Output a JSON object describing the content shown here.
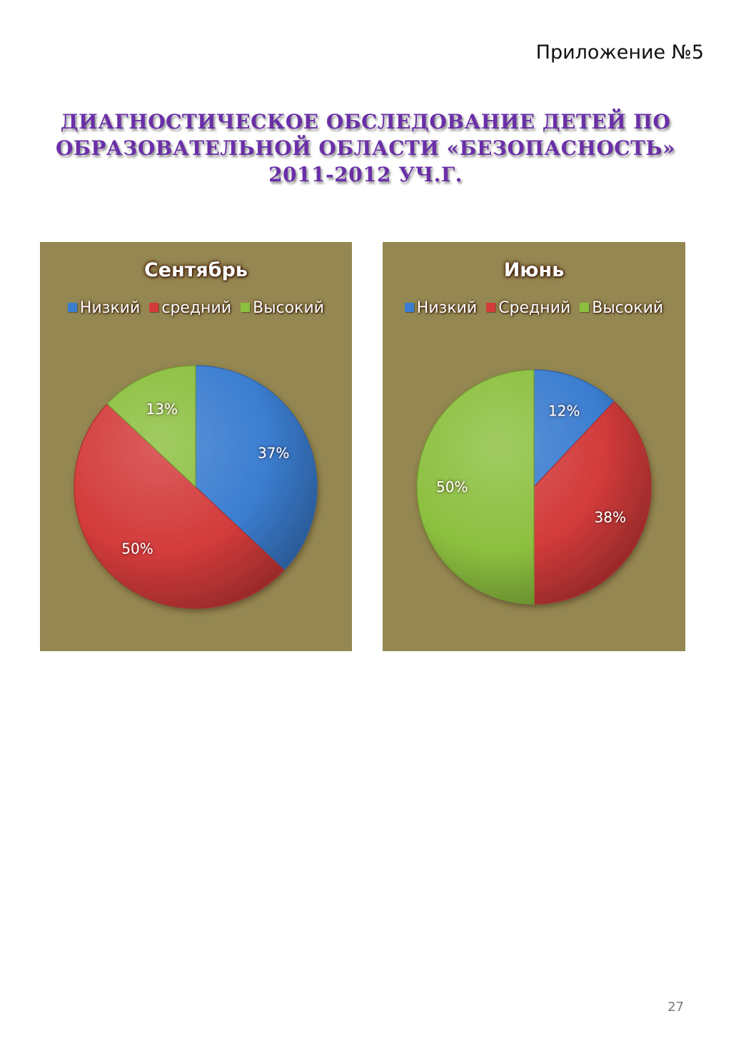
{
  "page": {
    "appendix": "Приложение №5",
    "title_lines": [
      "Диагностическое обследование  детей по",
      "образовательной области «Безопасность»",
      "2011-2012 уч.г."
    ],
    "page_number": "27"
  },
  "colors": {
    "title": "#6a2fa8",
    "panel_bg": "#948751",
    "low": "#3b7dd0",
    "medium": "#d33b3b",
    "high": "#8cbf3f"
  },
  "chart_data": [
    {
      "type": "pie",
      "title": "Сентябрь",
      "legend_placement": "top",
      "categories": [
        "Низкий",
        "средний",
        "Высокий"
      ],
      "values": [
        37,
        50,
        13
      ],
      "labels": [
        "37%",
        "50%",
        "13%"
      ]
    },
    {
      "type": "pie",
      "title": "Июнь",
      "legend_placement": "top",
      "categories": [
        "Низкий",
        "Средний",
        "Высокий"
      ],
      "values": [
        12,
        38,
        50
      ],
      "labels": [
        "12%",
        "38%",
        "50%"
      ]
    }
  ]
}
